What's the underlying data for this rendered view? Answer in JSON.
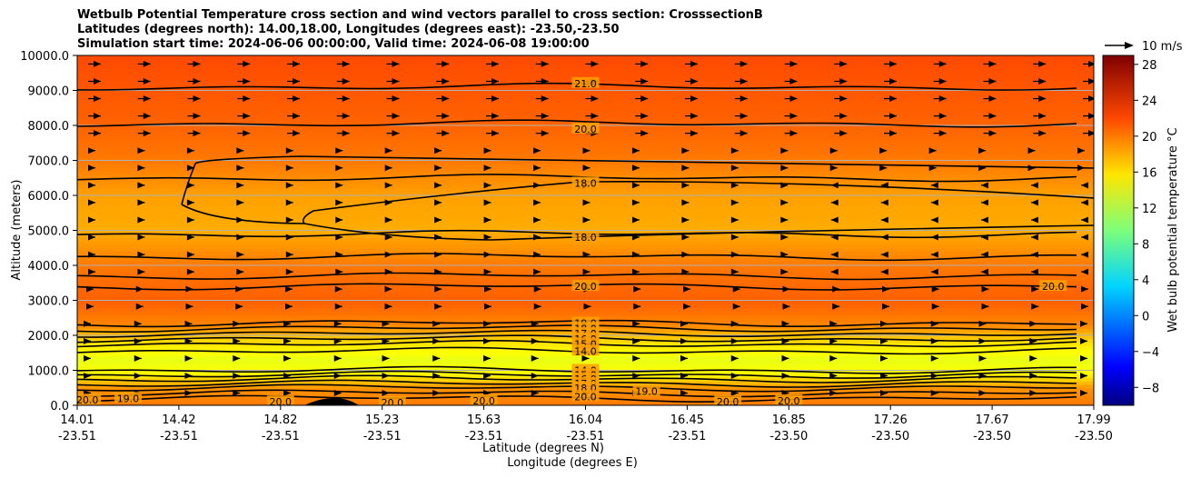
{
  "title_lines": [
    "Wetbulb Potential Temperature cross section and wind vectors parallel to cross section: CrosssectionB",
    "Latitudes (degrees north): 14.00,18.00, Longitudes (degrees east): -23.50,-23.50",
    "Simulation start time: 2024-06-06 00:00:00, Valid time: 2024-06-08 19:00:00"
  ],
  "quiver_key_label": "10 m/s",
  "colorbar": {
    "label": "Wet bulb potential temperature °C",
    "ticks": [
      "−8",
      "−4",
      "0",
      "4",
      "8",
      "12",
      "16",
      "20",
      "24",
      "28"
    ],
    "range": [
      -10,
      29
    ],
    "colormap": "jet"
  },
  "chart_data": {
    "type": "heatmap",
    "description_type": "filled contour cross-section with contour lines and wind vectors",
    "xlabel": "Latitude (degrees N)",
    "xlabel2": "Longitude (degrees E)",
    "ylabel": "Altitude (meters)",
    "ylim": [
      0,
      10000
    ],
    "y_ticks": [
      "0.0",
      "1000.0",
      "2000.0",
      "3000.0",
      "4000.0",
      "5000.0",
      "6000.0",
      "7000.0",
      "8000.0",
      "9000.0",
      "10000.0"
    ],
    "x_ticks": [
      {
        "lat": "14.01",
        "lon": "-23.51"
      },
      {
        "lat": "14.42",
        "lon": "-23.51"
      },
      {
        "lat": "14.82",
        "lon": "-23.51"
      },
      {
        "lat": "15.23",
        "lon": "-23.51"
      },
      {
        "lat": "15.63",
        "lon": "-23.51"
      },
      {
        "lat": "16.04",
        "lon": "-23.51"
      },
      {
        "lat": "16.45",
        "lon": "-23.51"
      },
      {
        "lat": "16.85",
        "lon": "-23.50"
      },
      {
        "lat": "17.26",
        "lon": "-23.50"
      },
      {
        "lat": "17.67",
        "lon": "-23.50"
      },
      {
        "lat": "17.99",
        "lon": "-23.50"
      }
    ],
    "grid": "horizontal",
    "vertical_profile": [
      {
        "altitude": 0,
        "value": 19.5
      },
      {
        "altitude": 500,
        "value": 18.5
      },
      {
        "altitude": 900,
        "value": 14.5
      },
      {
        "altitude": 1300,
        "value": 13.5
      },
      {
        "altitude": 1800,
        "value": 15.5
      },
      {
        "altitude": 2300,
        "value": 19.0
      },
      {
        "altitude": 3000,
        "value": 20.5
      },
      {
        "altitude": 4000,
        "value": 19.5
      },
      {
        "altitude": 5000,
        "value": 17.5
      },
      {
        "altitude": 6000,
        "value": 18.0
      },
      {
        "altitude": 7000,
        "value": 19.5
      },
      {
        "altitude": 8000,
        "value": 20.3
      },
      {
        "altitude": 9000,
        "value": 20.8
      },
      {
        "altitude": 10000,
        "value": 21.3
      }
    ],
    "contour_labels": [
      {
        "text": "21.0",
        "x": 0.5,
        "y": 9200
      },
      {
        "text": "20.0",
        "x": 0.5,
        "y": 7900
      },
      {
        "text": "18.0",
        "x": 0.5,
        "y": 6350
      },
      {
        "text": "18.0",
        "x": 0.5,
        "y": 4800
      },
      {
        "text": "20.0",
        "x": 0.5,
        "y": 3400
      },
      {
        "text": "19.0",
        "x": 0.5,
        "y": 2350
      },
      {
        "text": "18.0",
        "x": 0.5,
        "y": 2200
      },
      {
        "text": "17.0",
        "x": 0.5,
        "y": 2050
      },
      {
        "text": "16.0",
        "x": 0.5,
        "y": 1900
      },
      {
        "text": "15.0",
        "x": 0.5,
        "y": 1750
      },
      {
        "text": "14.0",
        "x": 0.5,
        "y": 1550
      },
      {
        "text": "14.0",
        "x": 0.5,
        "y": 1000
      },
      {
        "text": "15.0",
        "x": 0.5,
        "y": 870
      },
      {
        "text": "16.0",
        "x": 0.5,
        "y": 750
      },
      {
        "text": "17.0",
        "x": 0.5,
        "y": 620
      },
      {
        "text": "18.0",
        "x": 0.5,
        "y": 500
      },
      {
        "text": "20.0",
        "x": 0.5,
        "y": 250
      },
      {
        "text": "19.0",
        "x": 0.56,
        "y": 400
      },
      {
        "text": "20.0",
        "x": 0.2,
        "y": 100
      },
      {
        "text": "20.0",
        "x": 0.31,
        "y": 80
      },
      {
        "text": "20.0",
        "x": 0.4,
        "y": 130
      },
      {
        "text": "20.0",
        "x": 0.64,
        "y": 100
      },
      {
        "text": "20.0",
        "x": 0.7,
        "y": 130
      },
      {
        "text": "19.0",
        "x": 0.05,
        "y": 200
      },
      {
        "text": "20.0",
        "x": 0.01,
        "y": 150
      },
      {
        "text": "20.0",
        "x": 0.96,
        "y": 3400
      }
    ]
  }
}
